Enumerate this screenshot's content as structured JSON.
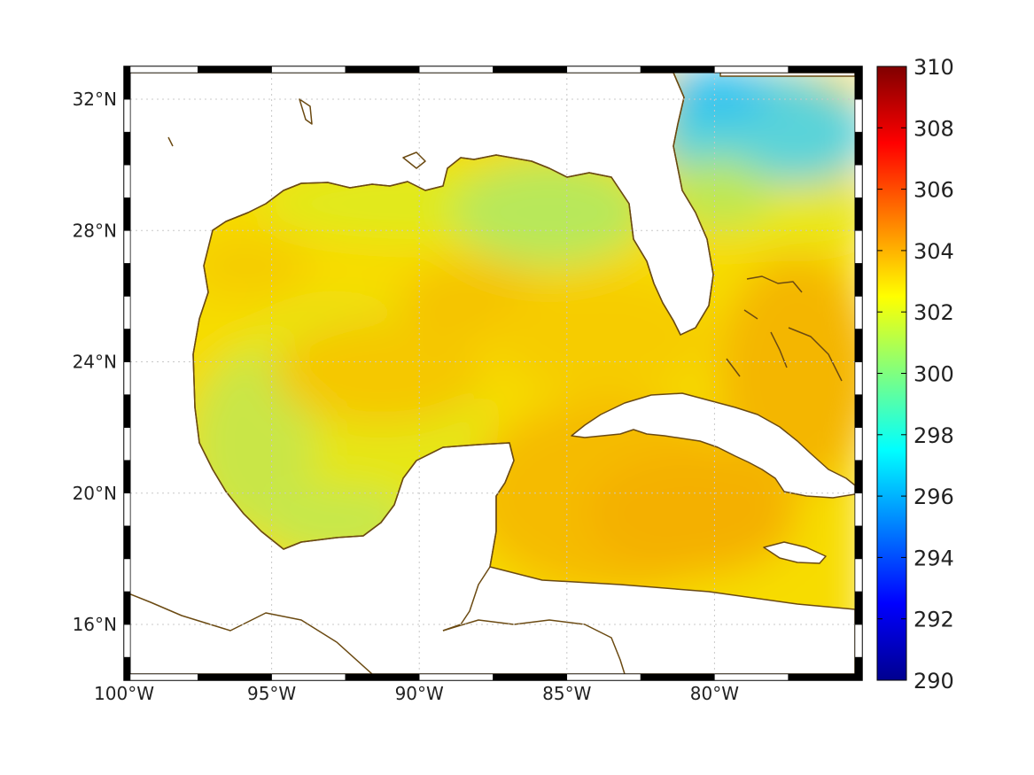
{
  "map": {
    "lon_ticks": [
      "100°W",
      "95°W",
      "90°W",
      "85°W",
      "80°W"
    ],
    "lat_ticks": [
      "32°N",
      "28°N",
      "24°N",
      "20°N",
      "16°N"
    ],
    "lon_values": [
      -100,
      -95,
      -90,
      -85,
      -80
    ],
    "lat_values": [
      32,
      28,
      24,
      20,
      16
    ],
    "lon_range": [
      -100,
      -75
    ],
    "lat_range": [
      14.3,
      33
    ]
  },
  "colorbar": {
    "min": 290,
    "max": 310,
    "tick_values": [
      290,
      292,
      294,
      296,
      298,
      300,
      302,
      304,
      306,
      308,
      310
    ],
    "tick_labels": [
      "290",
      "292",
      "294",
      "296",
      "298",
      "300",
      "302",
      "304",
      "306",
      "308",
      "310"
    ],
    "colormap": "jet"
  },
  "field": {
    "description_colors": {
      "land": "#ffffff",
      "coastline": "#6b4a12"
    }
  }
}
